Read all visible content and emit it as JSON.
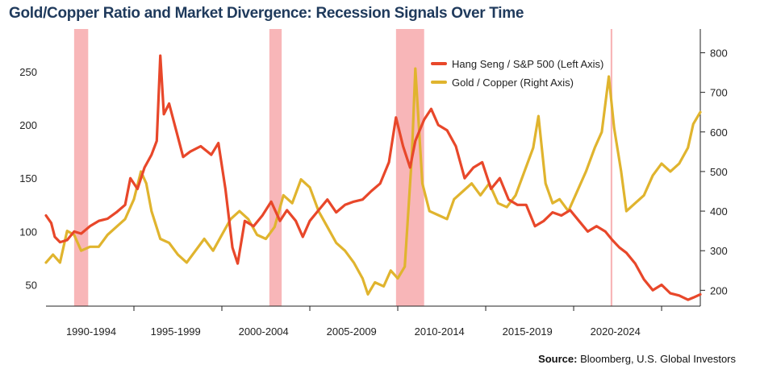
{
  "title": "Gold/Copper Ratio and Market Divergence: Recession Signals Over Time",
  "source_label": "Source:",
  "source_text": " Bloomberg, U.S. Global Investors",
  "colors": {
    "hang_seng": "#e8472a",
    "gold_copper": "#e0b42e",
    "recession": "#f7a9ab",
    "axis": "#222222"
  },
  "chart_data": {
    "type": "line",
    "title": "Gold/Copper Ratio and Market Divergence: Recession Signals Over Time",
    "x_range": [
      1988.0,
      2025.2
    ],
    "x_tick_labels": [
      "1990-1994",
      "1995-1999",
      "2000-2004",
      "2005-2009",
      "2010-2014",
      "2015-2019",
      "2020-2024"
    ],
    "y_left": {
      "label": "",
      "ticks": [
        50,
        100,
        150,
        200,
        250
      ],
      "range": [
        30,
        290
      ]
    },
    "y_right": {
      "label": "",
      "ticks": [
        200,
        300,
        400,
        500,
        600,
        700,
        800
      ],
      "range": [
        160,
        860
      ]
    },
    "legend_position": "top-right",
    "grid": false,
    "recession_bands": [
      [
        1989.6,
        1990.4
      ],
      [
        2000.7,
        2001.4
      ],
      [
        2007.9,
        2009.5
      ],
      [
        2020.1,
        2020.2
      ]
    ],
    "series": [
      {
        "name": "Hang Seng / S&P 500 (Left Axis)",
        "axis": "left",
        "points": [
          [
            1988.0,
            115
          ],
          [
            1988.3,
            108
          ],
          [
            1988.5,
            95
          ],
          [
            1988.8,
            90
          ],
          [
            1989.2,
            92
          ],
          [
            1989.6,
            100
          ],
          [
            1990.0,
            98
          ],
          [
            1990.5,
            105
          ],
          [
            1991.0,
            110
          ],
          [
            1991.5,
            112
          ],
          [
            1992.0,
            118
          ],
          [
            1992.5,
            125
          ],
          [
            1992.8,
            150
          ],
          [
            1993.2,
            140
          ],
          [
            1993.6,
            160
          ],
          [
            1994.0,
            172
          ],
          [
            1994.3,
            185
          ],
          [
            1994.5,
            265
          ],
          [
            1994.7,
            210
          ],
          [
            1995.0,
            220
          ],
          [
            1995.4,
            195
          ],
          [
            1995.8,
            170
          ],
          [
            1996.2,
            175
          ],
          [
            1996.8,
            180
          ],
          [
            1997.4,
            172
          ],
          [
            1997.8,
            183
          ],
          [
            1998.2,
            140
          ],
          [
            1998.6,
            85
          ],
          [
            1998.9,
            70
          ],
          [
            1999.3,
            110
          ],
          [
            1999.8,
            105
          ],
          [
            2000.3,
            115
          ],
          [
            2000.8,
            128
          ],
          [
            2001.3,
            110
          ],
          [
            2001.7,
            120
          ],
          [
            2002.2,
            110
          ],
          [
            2002.6,
            95
          ],
          [
            2003.0,
            110
          ],
          [
            2003.5,
            120
          ],
          [
            2004.0,
            130
          ],
          [
            2004.5,
            118
          ],
          [
            2005.0,
            125
          ],
          [
            2005.5,
            128
          ],
          [
            2006.0,
            130
          ],
          [
            2006.5,
            138
          ],
          [
            2007.0,
            145
          ],
          [
            2007.5,
            165
          ],
          [
            2007.9,
            207
          ],
          [
            2008.3,
            180
          ],
          [
            2008.7,
            160
          ],
          [
            2009.0,
            185
          ],
          [
            2009.5,
            205
          ],
          [
            2009.9,
            215
          ],
          [
            2010.3,
            200
          ],
          [
            2010.8,
            195
          ],
          [
            2011.3,
            180
          ],
          [
            2011.8,
            150
          ],
          [
            2012.3,
            160
          ],
          [
            2012.8,
            165
          ],
          [
            2013.3,
            140
          ],
          [
            2013.8,
            150
          ],
          [
            2014.3,
            130
          ],
          [
            2014.8,
            125
          ],
          [
            2015.3,
            125
          ],
          [
            2015.8,
            105
          ],
          [
            2016.3,
            110
          ],
          [
            2016.8,
            118
          ],
          [
            2017.3,
            115
          ],
          [
            2017.8,
            120
          ],
          [
            2018.3,
            110
          ],
          [
            2018.8,
            100
          ],
          [
            2019.3,
            105
          ],
          [
            2019.8,
            100
          ],
          [
            2020.2,
            92
          ],
          [
            2020.6,
            85
          ],
          [
            2021.0,
            80
          ],
          [
            2021.5,
            70
          ],
          [
            2022.0,
            55
          ],
          [
            2022.5,
            45
          ],
          [
            2023.0,
            50
          ],
          [
            2023.5,
            42
          ],
          [
            2024.0,
            40
          ],
          [
            2024.5,
            36
          ],
          [
            2024.8,
            38
          ],
          [
            2025.2,
            41
          ]
        ]
      },
      {
        "name": "Gold / Copper (Right Axis)",
        "axis": "right",
        "points": [
          [
            1988.0,
            270
          ],
          [
            1988.4,
            290
          ],
          [
            1988.8,
            270
          ],
          [
            1989.2,
            350
          ],
          [
            1989.6,
            340
          ],
          [
            1990.0,
            300
          ],
          [
            1990.5,
            310
          ],
          [
            1991.0,
            310
          ],
          [
            1991.5,
            340
          ],
          [
            1992.0,
            360
          ],
          [
            1992.5,
            380
          ],
          [
            1993.0,
            430
          ],
          [
            1993.4,
            500
          ],
          [
            1993.7,
            470
          ],
          [
            1994.0,
            400
          ],
          [
            1994.5,
            330
          ],
          [
            1995.0,
            320
          ],
          [
            1995.5,
            290
          ],
          [
            1996.0,
            270
          ],
          [
            1996.5,
            300
          ],
          [
            1997.0,
            330
          ],
          [
            1997.5,
            300
          ],
          [
            1998.0,
            340
          ],
          [
            1998.5,
            380
          ],
          [
            1999.0,
            400
          ],
          [
            1999.5,
            380
          ],
          [
            2000.0,
            340
          ],
          [
            2000.5,
            330
          ],
          [
            2001.0,
            360
          ],
          [
            2001.5,
            440
          ],
          [
            2002.0,
            420
          ],
          [
            2002.5,
            480
          ],
          [
            2003.0,
            460
          ],
          [
            2003.5,
            400
          ],
          [
            2004.0,
            360
          ],
          [
            2004.5,
            320
          ],
          [
            2005.0,
            300
          ],
          [
            2005.5,
            270
          ],
          [
            2006.0,
            230
          ],
          [
            2006.3,
            190
          ],
          [
            2006.7,
            220
          ],
          [
            2007.2,
            210
          ],
          [
            2007.6,
            250
          ],
          [
            2008.0,
            230
          ],
          [
            2008.4,
            260
          ],
          [
            2008.8,
            540
          ],
          [
            2009.0,
            760
          ],
          [
            2009.4,
            470
          ],
          [
            2009.8,
            400
          ],
          [
            2010.3,
            390
          ],
          [
            2010.8,
            380
          ],
          [
            2011.2,
            430
          ],
          [
            2011.7,
            450
          ],
          [
            2012.2,
            470
          ],
          [
            2012.7,
            440
          ],
          [
            2013.2,
            470
          ],
          [
            2013.7,
            420
          ],
          [
            2014.2,
            410
          ],
          [
            2014.7,
            440
          ],
          [
            2015.2,
            500
          ],
          [
            2015.7,
            560
          ],
          [
            2016.0,
            640
          ],
          [
            2016.4,
            470
          ],
          [
            2016.8,
            420
          ],
          [
            2017.2,
            430
          ],
          [
            2017.7,
            400
          ],
          [
            2018.2,
            450
          ],
          [
            2018.7,
            500
          ],
          [
            2019.2,
            560
          ],
          [
            2019.6,
            600
          ],
          [
            2020.0,
            740
          ],
          [
            2020.3,
            610
          ],
          [
            2020.7,
            500
          ],
          [
            2021.0,
            400
          ],
          [
            2021.5,
            420
          ],
          [
            2022.0,
            440
          ],
          [
            2022.5,
            490
          ],
          [
            2023.0,
            520
          ],
          [
            2023.5,
            500
          ],
          [
            2024.0,
            520
          ],
          [
            2024.5,
            560
          ],
          [
            2024.8,
            620
          ],
          [
            2025.2,
            650
          ]
        ]
      }
    ]
  }
}
